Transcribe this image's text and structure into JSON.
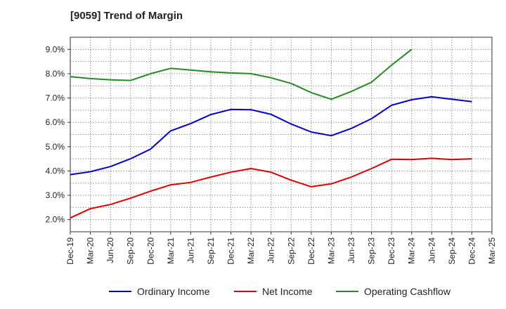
{
  "chart_data": {
    "type": "line",
    "title": "[9059]  Trend of Margin",
    "xlabel": "",
    "ylabel": "",
    "ylim": [
      1.5,
      9.5
    ],
    "y_ticks": [
      "2.0%",
      "3.0%",
      "4.0%",
      "5.0%",
      "6.0%",
      "7.0%",
      "8.0%",
      "9.0%"
    ],
    "y_tick_values": [
      2,
      3,
      4,
      5,
      6,
      7,
      8,
      9
    ],
    "x_tick_labels": [
      "Dec-19",
      "Mar-20",
      "Jun-20",
      "Sep-20",
      "Dec-20",
      "Mar-21",
      "Jun-21",
      "Sep-21",
      "Dec-21",
      "Mar-22",
      "Jun-22",
      "Sep-22",
      "Dec-22",
      "Mar-23",
      "Jun-23",
      "Sep-23",
      "Dec-23",
      "Mar-24",
      "Jun-24",
      "Sep-24",
      "Dec-24",
      "Mar-25"
    ],
    "grid": true,
    "legend_position": "bottom",
    "series": [
      {
        "name": "Ordinary Income",
        "color": "#0000cc",
        "values": [
          3.85,
          3.97,
          4.18,
          4.5,
          4.9,
          5.65,
          5.95,
          6.32,
          6.53,
          6.52,
          6.33,
          5.93,
          5.6,
          5.45,
          5.75,
          6.15,
          6.7,
          6.93,
          7.05,
          6.95,
          6.85,
          null
        ]
      },
      {
        "name": "Net Income",
        "color": "#dd0000",
        "values": [
          2.07,
          2.45,
          2.62,
          2.88,
          3.17,
          3.43,
          3.53,
          3.75,
          3.95,
          4.1,
          3.95,
          3.62,
          3.35,
          3.47,
          3.75,
          4.1,
          4.48,
          4.47,
          4.52,
          4.47,
          4.5,
          null
        ]
      },
      {
        "name": "Operating Cashflow",
        "color": "#228b22",
        "values": [
          7.88,
          7.8,
          7.75,
          7.72,
          8.0,
          8.22,
          8.15,
          8.08,
          8.03,
          8.0,
          7.83,
          7.6,
          7.22,
          6.95,
          7.27,
          7.65,
          8.35,
          9.0,
          null,
          null,
          null,
          null
        ]
      }
    ]
  }
}
